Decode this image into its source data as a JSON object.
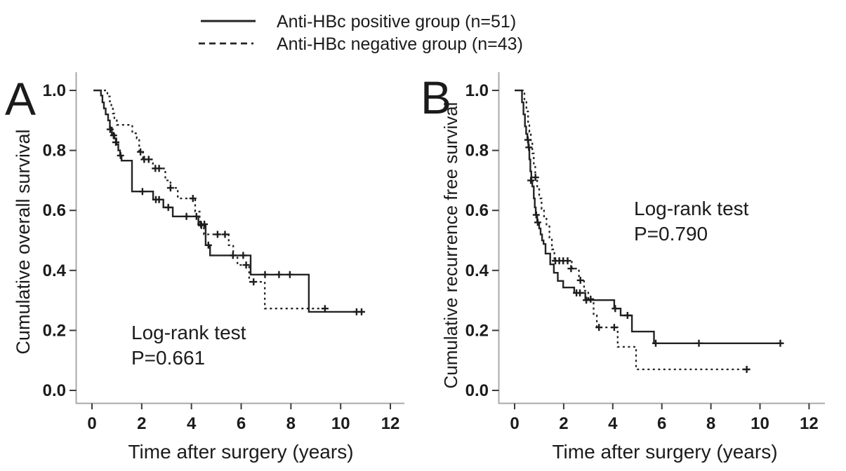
{
  "figure": {
    "background": "#ffffff",
    "text_color": "#1b1b1b",
    "axis_color": "#a9a9a9",
    "curve_color": "#232323"
  },
  "legend": {
    "items": [
      {
        "label": "Anti-HBc positive group (n=51)",
        "style": "solid"
      },
      {
        "label": "Anti-HBc negative group (n=43)",
        "style": "dashed"
      }
    ]
  },
  "chart_data": [
    {
      "type": "line",
      "subtype": "kaplan-meier-step",
      "panel": "A",
      "ylabel": "Cumulative overall survival",
      "xlabel": "Time after surgery (years)",
      "annotation": [
        "Log-rank test",
        "P=0.661"
      ],
      "log_rank_p": 0.661,
      "xlim": [
        0,
        12
      ],
      "ylim": [
        0.0,
        1.0
      ],
      "grid": false,
      "x_ticks": {
        "values": [
          0,
          2,
          4,
          6,
          8,
          10,
          12
        ],
        "labels": [
          "0",
          "2",
          "4",
          "6",
          "8",
          "10",
          "12"
        ]
      },
      "y_ticks": {
        "values": [
          0.0,
          0.2,
          0.4,
          0.6,
          0.8,
          1.0
        ],
        "labels": [
          "0.0",
          "0.2",
          "0.4",
          "0.6",
          "0.8",
          "1.0"
        ]
      },
      "series": [
        {
          "name": "Anti-HBc positive group (n=51)",
          "style": "solid",
          "steps": [
            [
              0.06,
              1.0
            ],
            [
              0.36,
              0.983
            ],
            [
              0.42,
              0.96
            ],
            [
              0.48,
              0.94
            ],
            [
              0.55,
              0.92
            ],
            [
              0.65,
              0.9
            ],
            [
              0.72,
              0.876
            ],
            [
              0.8,
              0.855
            ],
            [
              0.9,
              0.84
            ],
            [
              0.98,
              0.82
            ],
            [
              1.06,
              0.8
            ],
            [
              1.13,
              0.783
            ],
            [
              1.19,
              0.766
            ],
            [
              1.61,
              0.663
            ],
            [
              2.46,
              0.636
            ],
            [
              2.87,
              0.61
            ],
            [
              3.25,
              0.58
            ],
            [
              4.28,
              0.554
            ],
            [
              4.57,
              0.484
            ],
            [
              4.75,
              0.45
            ],
            [
              6.38,
              0.386
            ],
            [
              8.72,
              0.262
            ]
          ],
          "end_time": 10.92,
          "censors": [
            [
              0.73,
              0.87
            ],
            [
              0.87,
              0.85
            ],
            [
              0.96,
              0.827
            ],
            [
              1.15,
              0.783
            ],
            [
              2.03,
              0.663
            ],
            [
              2.57,
              0.636
            ],
            [
              2.7,
              0.636
            ],
            [
              3.07,
              0.61
            ],
            [
              3.8,
              0.58
            ],
            [
              4.2,
              0.58
            ],
            [
              4.38,
              0.554
            ],
            [
              4.52,
              0.554
            ],
            [
              4.68,
              0.484
            ],
            [
              5.67,
              0.45
            ],
            [
              6.08,
              0.45
            ],
            [
              6.96,
              0.386
            ],
            [
              7.52,
              0.386
            ],
            [
              7.96,
              0.386
            ],
            [
              10.64,
              0.262
            ],
            [
              10.84,
              0.262
            ]
          ]
        },
        {
          "name": "Anti-HBc negative group (n=43)",
          "style": "dashed",
          "steps": [
            [
              0.48,
              1.0
            ],
            [
              0.62,
              0.98
            ],
            [
              0.72,
              0.963
            ],
            [
              0.78,
              0.944
            ],
            [
              0.84,
              0.923
            ],
            [
              0.9,
              0.9
            ],
            [
              1.0,
              0.885
            ],
            [
              1.62,
              0.857
            ],
            [
              1.8,
              0.84
            ],
            [
              1.9,
              0.795
            ],
            [
              2.05,
              0.77
            ],
            [
              2.45,
              0.74
            ],
            [
              2.95,
              0.7
            ],
            [
              3.16,
              0.675
            ],
            [
              3.45,
              0.64
            ],
            [
              4.15,
              0.596
            ],
            [
              4.33,
              0.55
            ],
            [
              4.5,
              0.52
            ],
            [
              5.5,
              0.484
            ],
            [
              5.68,
              0.45
            ],
            [
              5.85,
              0.418
            ],
            [
              6.32,
              0.362
            ],
            [
              6.95,
              0.273
            ]
          ],
          "end_time": 9.49,
          "censors": [
            [
              1.95,
              0.795
            ],
            [
              2.1,
              0.77
            ],
            [
              2.28,
              0.77
            ],
            [
              2.55,
              0.74
            ],
            [
              2.7,
              0.74
            ],
            [
              3.16,
              0.675
            ],
            [
              4.06,
              0.64
            ],
            [
              4.4,
              0.55
            ],
            [
              5.05,
              0.52
            ],
            [
              5.35,
              0.52
            ],
            [
              6.2,
              0.418
            ],
            [
              6.5,
              0.362
            ],
            [
              9.37,
              0.273
            ]
          ]
        }
      ]
    },
    {
      "type": "line",
      "subtype": "kaplan-meier-step",
      "panel": "B",
      "ylabel": "Cumulative recurrence free survival",
      "xlabel": "Time after surgery (years)",
      "annotation": [
        "Log-rank test",
        "P=0.790"
      ],
      "log_rank_p": 0.79,
      "xlim": [
        0,
        12
      ],
      "ylim": [
        0.0,
        1.0
      ],
      "grid": false,
      "x_ticks": {
        "values": [
          0,
          2,
          4,
          6,
          8,
          10,
          12
        ],
        "labels": [
          "0",
          "2",
          "4",
          "6",
          "8",
          "10",
          "12"
        ]
      },
      "y_ticks": {
        "values": [
          0.0,
          0.2,
          0.4,
          0.6,
          0.8,
          1.0
        ],
        "labels": [
          "0.0",
          "0.2",
          "0.4",
          "0.6",
          "0.8",
          "1.0"
        ]
      },
      "series": [
        {
          "name": "Anti-HBc positive group (n=51)",
          "style": "solid",
          "steps": [
            [
              0.0,
              1.0
            ],
            [
              0.3,
              0.96
            ],
            [
              0.36,
              0.92
            ],
            [
              0.42,
              0.88
            ],
            [
              0.47,
              0.855
            ],
            [
              0.52,
              0.835
            ],
            [
              0.56,
              0.81
            ],
            [
              0.6,
              0.77
            ],
            [
              0.64,
              0.73
            ],
            [
              0.68,
              0.7
            ],
            [
              0.72,
              0.68
            ],
            [
              0.78,
              0.64
            ],
            [
              0.82,
              0.61
            ],
            [
              0.86,
              0.585
            ],
            [
              0.92,
              0.56
            ],
            [
              1.0,
              0.54
            ],
            [
              1.06,
              0.52
            ],
            [
              1.12,
              0.5
            ],
            [
              1.18,
              0.488
            ],
            [
              1.26,
              0.456
            ],
            [
              1.45,
              0.42
            ],
            [
              1.6,
              0.392
            ],
            [
              1.76,
              0.365
            ],
            [
              1.98,
              0.343
            ],
            [
              2.43,
              0.325
            ],
            [
              2.88,
              0.301
            ],
            [
              4.06,
              0.273
            ],
            [
              4.32,
              0.25
            ],
            [
              4.78,
              0.196
            ],
            [
              5.68,
              0.157
            ]
          ],
          "end_time": 10.92,
          "censors": [
            [
              0.54,
              0.835
            ],
            [
              0.58,
              0.81
            ],
            [
              0.66,
              0.7
            ],
            [
              0.88,
              0.585
            ],
            [
              0.94,
              0.56
            ],
            [
              2.52,
              0.325
            ],
            [
              2.66,
              0.325
            ],
            [
              2.92,
              0.301
            ],
            [
              4.1,
              0.273
            ],
            [
              4.6,
              0.25
            ],
            [
              5.75,
              0.157
            ],
            [
              7.51,
              0.157
            ],
            [
              10.83,
              0.157
            ]
          ]
        },
        {
          "name": "Anti-HBc negative group (n=43)",
          "style": "dashed",
          "steps": [
            [
              0.28,
              1.0
            ],
            [
              0.4,
              0.965
            ],
            [
              0.48,
              0.93
            ],
            [
              0.55,
              0.895
            ],
            [
              0.6,
              0.862
            ],
            [
              0.66,
              0.83
            ],
            [
              0.72,
              0.79
            ],
            [
              0.78,
              0.75
            ],
            [
              0.84,
              0.71
            ],
            [
              0.92,
              0.675
            ],
            [
              1.0,
              0.64
            ],
            [
              1.1,
              0.605
            ],
            [
              1.2,
              0.577
            ],
            [
              1.3,
              0.547
            ],
            [
              1.42,
              0.51
            ],
            [
              1.52,
              0.47
            ],
            [
              1.62,
              0.432
            ],
            [
              2.33,
              0.406
            ],
            [
              2.62,
              0.367
            ],
            [
              2.83,
              0.332
            ],
            [
              3.0,
              0.304
            ],
            [
              3.22,
              0.25
            ],
            [
              3.35,
              0.21
            ],
            [
              4.2,
              0.145
            ],
            [
              4.95,
              0.07
            ]
          ],
          "end_time": 9.7,
          "censors": [
            [
              0.85,
              0.71
            ],
            [
              1.66,
              0.432
            ],
            [
              1.82,
              0.432
            ],
            [
              1.98,
              0.432
            ],
            [
              2.16,
              0.432
            ],
            [
              2.3,
              0.406
            ],
            [
              2.68,
              0.367
            ],
            [
              3.1,
              0.304
            ],
            [
              3.44,
              0.21
            ],
            [
              4.06,
              0.21
            ],
            [
              9.46,
              0.07
            ]
          ]
        }
      ]
    }
  ]
}
